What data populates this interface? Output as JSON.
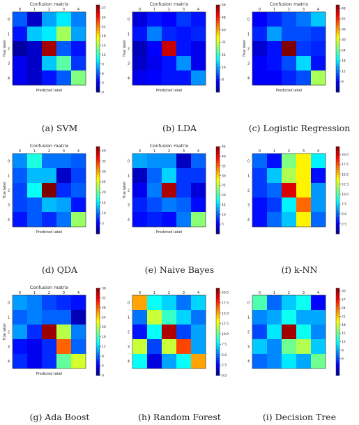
{
  "chart_data": [
    {
      "type": "heatmap",
      "caption": "(a) SVM",
      "title": "Confusion matrix",
      "xlabel": "Predicted label",
      "ylabel": "True label",
      "x_ticks": [
        "0",
        "1",
        "2",
        "3",
        "4"
      ],
      "y_ticks": [
        "0",
        "1",
        "2",
        "3",
        "4"
      ],
      "vmin": 0,
      "vmax": 28,
      "colorbar_ticks": [
        "0",
        "3",
        "6",
        "9",
        "12",
        "15",
        "18",
        "21",
        "24",
        "27"
      ],
      "values": [
        [
          6,
          2,
          8,
          10,
          7
        ],
        [
          4,
          9,
          10,
          15,
          8
        ],
        [
          1,
          2,
          27,
          6,
          4
        ],
        [
          3,
          2,
          9,
          13,
          5
        ],
        [
          3,
          2,
          4,
          6,
          14
        ]
      ]
    },
    {
      "type": "heatmap",
      "caption": "(b) LDA",
      "title": "Confusion matrix",
      "xlabel": "Predicted label",
      "ylabel": "True label",
      "x_ticks": [
        "0",
        "1",
        "2",
        "3",
        "4"
      ],
      "y_ticks": [
        "0",
        "1",
        "2",
        "3",
        "4"
      ],
      "vmin": 0,
      "vmax": 56,
      "colorbar_ticks": [
        "8",
        "16",
        "24",
        "32",
        "40",
        "48",
        "56"
      ],
      "values": [
        [
          5,
          8,
          7,
          10,
          8
        ],
        [
          8,
          14,
          9,
          8,
          9
        ],
        [
          3,
          7,
          52,
          8,
          6
        ],
        [
          4,
          6,
          8,
          15,
          6
        ],
        [
          6,
          7,
          8,
          8,
          15
        ]
      ]
    },
    {
      "type": "heatmap",
      "caption": "(c) Logistic Regression",
      "title": "Confusion matrix",
      "xlabel": "Predicted label",
      "ylabel": "True label",
      "x_ticks": [
        "0",
        "1",
        "2",
        "3",
        "4"
      ],
      "y_ticks": [
        "0",
        "1",
        "2",
        "3",
        "4"
      ],
      "vmin": 0,
      "vmax": 50,
      "colorbar_ticks": [
        "6",
        "12",
        "18",
        "24",
        "30",
        "36",
        "42",
        "48"
      ],
      "values": [
        [
          6,
          8,
          10,
          12,
          16
        ],
        [
          8,
          14,
          10,
          10,
          9
        ],
        [
          4,
          7,
          50,
          9,
          8
        ],
        [
          6,
          7,
          10,
          17,
          7
        ],
        [
          6,
          6,
          8,
          10,
          27
        ]
      ]
    },
    {
      "type": "heatmap",
      "caption": "(d) QDA",
      "title": "Confusion matrix",
      "xlabel": "Predicted label",
      "ylabel": "True label",
      "x_ticks": [
        "0",
        "1",
        "2",
        "3",
        "4"
      ],
      "y_ticks": [
        "0",
        "1",
        "2",
        "3",
        "4"
      ],
      "vmin": 0,
      "vmax": 42,
      "colorbar_ticks": [
        "5",
        "10",
        "15",
        "20",
        "25",
        "30",
        "35",
        "40"
      ],
      "values": [
        [
          11,
          17,
          10,
          10,
          9
        ],
        [
          9,
          13,
          13,
          3,
          8
        ],
        [
          8,
          16,
          42,
          7,
          9
        ],
        [
          8,
          9,
          13,
          12,
          6
        ],
        [
          6,
          9,
          7,
          10,
          22
        ]
      ]
    },
    {
      "type": "heatmap",
      "caption": "(e) Naive Bayes",
      "title": "Confusion matrix",
      "xlabel": "Predicted label",
      "ylabel": "True label",
      "x_ticks": [
        "0",
        "1",
        "2",
        "3",
        "4"
      ],
      "y_ticks": [
        "0",
        "1",
        "2",
        "3",
        "4"
      ],
      "vmin": 0,
      "vmax": 45,
      "colorbar_ticks": [
        "5",
        "10",
        "15",
        "20",
        "25",
        "30",
        "35",
        "40",
        "45"
      ],
      "values": [
        [
          13,
          12,
          12,
          3,
          10
        ],
        [
          3,
          10,
          15,
          8,
          8
        ],
        [
          5,
          11,
          43,
          8,
          4
        ],
        [
          7,
          9,
          11,
          10,
          6
        ],
        [
          6,
          7,
          6,
          11,
          23
        ]
      ]
    },
    {
      "type": "heatmap",
      "caption": "(f) k-NN",
      "title": "",
      "xlabel": "",
      "ylabel": "",
      "x_ticks": [
        "0",
        "1",
        "2",
        "3",
        "4"
      ],
      "y_ticks": [
        "0",
        "1",
        "2",
        "3",
        "4"
      ],
      "vmin": 0,
      "vmax": 22,
      "colorbar_ticks": [
        "2.5",
        "5.0",
        "7.5",
        "10.0",
        "12.5",
        "15.0",
        "17.5",
        "20.0"
      ],
      "values": [
        [
          5,
          3,
          11,
          14,
          8
        ],
        [
          4,
          7,
          12,
          14,
          3
        ],
        [
          4,
          5,
          20,
          14,
          6
        ],
        [
          3,
          4,
          8,
          17,
          6
        ],
        [
          3,
          5,
          7,
          14,
          5
        ]
      ]
    },
    {
      "type": "heatmap",
      "caption": "(g) Ada Boost",
      "title": "Confusion matrix",
      "xlabel": "Predicted label",
      "ylabel": "True label",
      "x_ticks": [
        "0",
        "1",
        "2",
        "3",
        "4"
      ],
      "y_ticks": [
        "0",
        "1",
        "2",
        "3",
        "4"
      ],
      "vmin": 0,
      "vmax": 36,
      "colorbar_ticks": [
        "0",
        "4",
        "8",
        "12",
        "16",
        "20",
        "24",
        "28",
        "32",
        "36"
      ],
      "values": [
        [
          10,
          9,
          7,
          6,
          5
        ],
        [
          8,
          9,
          8,
          8,
          2
        ],
        [
          10,
          6,
          35,
          20,
          9
        ],
        [
          5,
          4,
          6,
          28,
          8
        ],
        [
          6,
          4,
          6,
          17,
          21
        ]
      ]
    },
    {
      "type": "heatmap",
      "caption": "(h) Random Forest",
      "title": "",
      "xlabel": "",
      "ylabel": "",
      "x_ticks": [
        "0",
        "1",
        "2",
        "3",
        "4"
      ],
      "y_ticks": [
        "0",
        "1",
        "2",
        "3",
        "4"
      ],
      "vmin": 0,
      "vmax": 21,
      "colorbar_ticks": [
        "0.0",
        "2.5",
        "5.0",
        "7.5",
        "10.0",
        "12.5",
        "15.0",
        "17.5",
        "20.0"
      ],
      "values": [
        [
          15,
          8,
          7,
          5,
          7
        ],
        [
          5,
          12,
          9,
          7,
          5
        ],
        [
          3,
          8,
          20,
          4,
          6
        ],
        [
          12,
          4,
          12,
          17,
          6
        ],
        [
          8,
          2,
          6,
          8,
          15
        ]
      ]
    },
    {
      "type": "heatmap",
      "caption": "(i) Decision Tree",
      "title": "",
      "xlabel": "",
      "ylabel": "",
      "x_ticks": [
        "0",
        "1",
        "2",
        "3",
        "4"
      ],
      "y_ticks": [
        "0",
        "1",
        "2",
        "3",
        "4"
      ],
      "vmin": 0,
      "vmax": 31,
      "colorbar_ticks": [
        "6",
        "9",
        "12",
        "15",
        "18",
        "21",
        "24",
        "27",
        "30"
      ],
      "values": [
        [
          14,
          7,
          10,
          12,
          4
        ],
        [
          8,
          9,
          12,
          9,
          9
        ],
        [
          6,
          11,
          30,
          12,
          8
        ],
        [
          10,
          8,
          15,
          17,
          10
        ],
        [
          7,
          8,
          11,
          9,
          15
        ]
      ]
    }
  ]
}
